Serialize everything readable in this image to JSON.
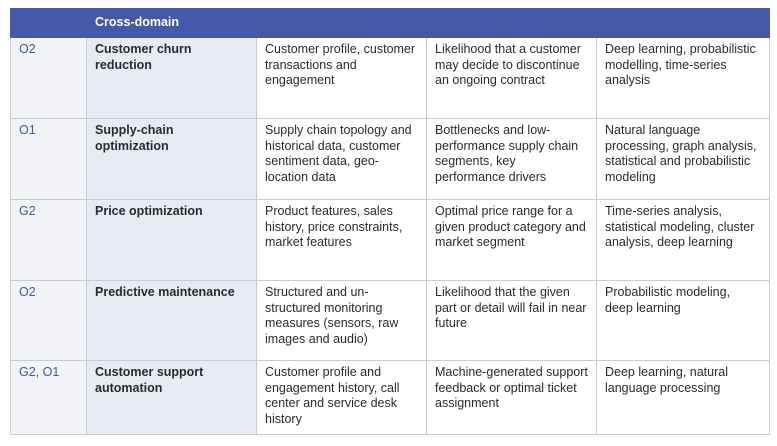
{
  "header": {
    "col1": "",
    "col2": "Cross-domain",
    "col3": "",
    "col4": "",
    "col5": ""
  },
  "rows": [
    {
      "code": "O2",
      "title": "Customer churn reduction",
      "data": "Customer profile, customer transactions and engagement",
      "output": "Likelihood that a customer may decide to discontinue an ongoing contract",
      "methods": "Deep learning, probabilistic modelling, time-series analysis"
    },
    {
      "code": "O1",
      "title": "Supply-chain optimization",
      "data": "Supply chain topology and historical data, customer sentiment data, geo-location data",
      "output": "Bottlenecks and low-performance supply chain segments, key performance drivers",
      "methods": "Natural language processing, graph analysis, statistical and probabilistic modeling"
    },
    {
      "code": "G2",
      "title": "Price optimization",
      "data": "Product features, sales history, price constraints, market features",
      "output": "Optimal price range for a given product category and market segment",
      "methods": "Time-series analysis, statistical modeling, cluster analysis, deep learning"
    },
    {
      "code": "O2",
      "title": "Predictive maintenance",
      "data": "Structured and un-structured monitoring measures (sensors, raw images and audio)",
      "output": "Likelihood that the given part or detail will fail in near future",
      "methods": "Probabilistic modeling, deep learning"
    },
    {
      "code": "G2, O1",
      "title": "Customer support automation",
      "data": "Customer profile and engagement history, call center and service desk history",
      "output": "Machine-generated support feedback or optimal ticket assignment",
      "methods": "Deep learning, natural language processing"
    }
  ]
}
